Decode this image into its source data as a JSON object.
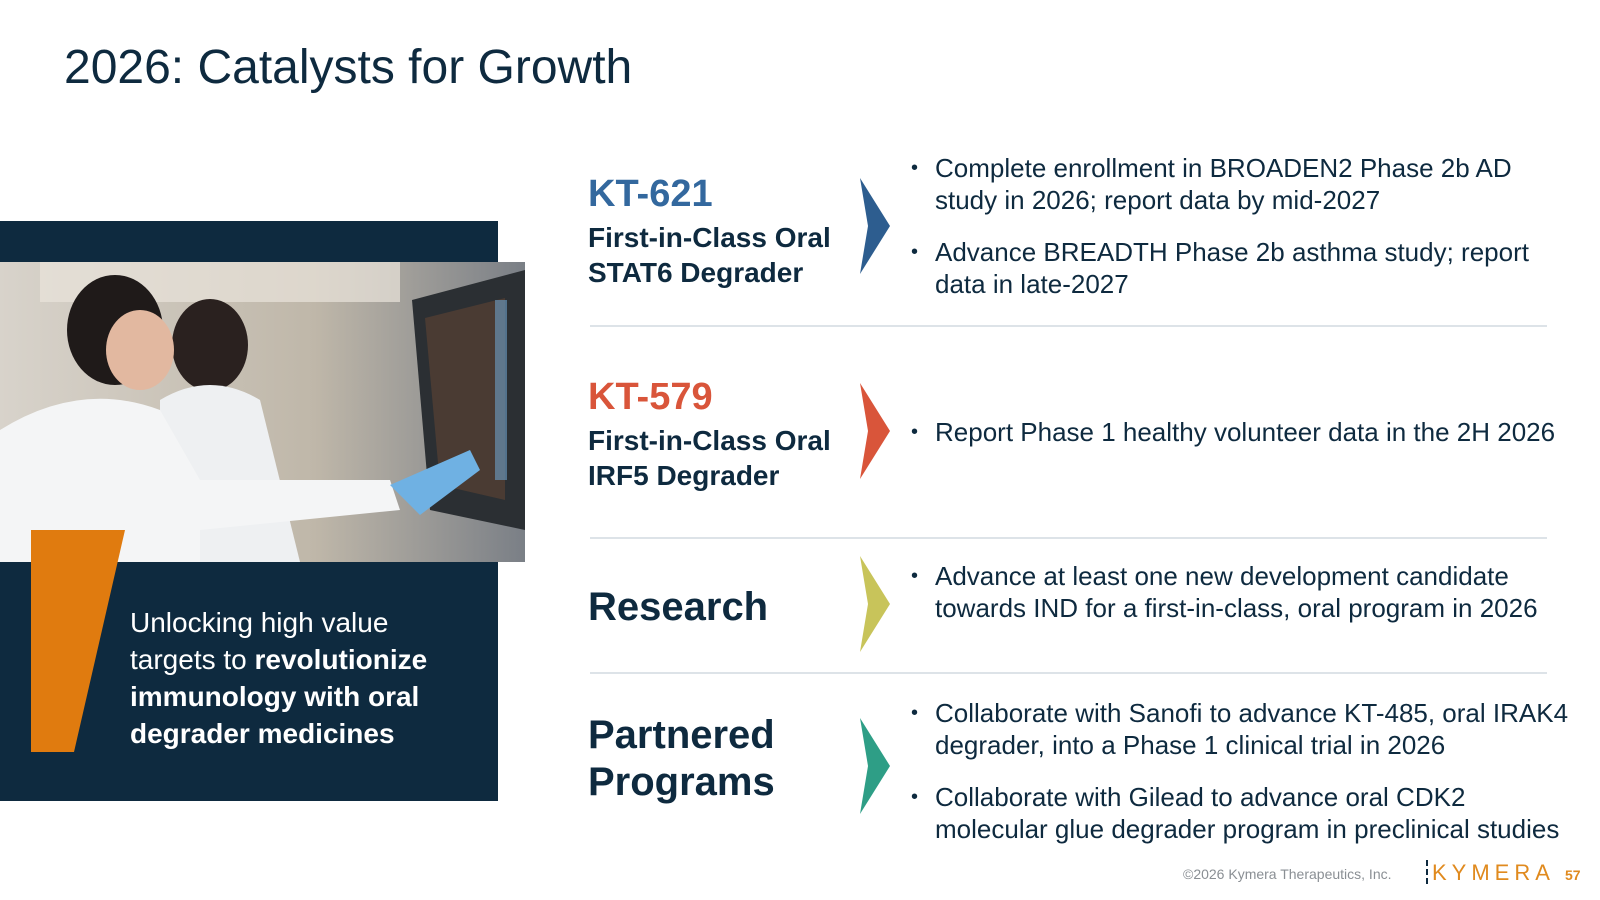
{
  "header": {
    "title": "2026: Catalysts for Growth"
  },
  "sidebar": {
    "caption_regular": "Unlocking high value targets to",
    "caption_bold": "revolutionize immunology with oral degrader medicines"
  },
  "rows": [
    {
      "name": "KT-621",
      "subtitle": "First-in-Class Oral STAT6 Degrader",
      "bullets": [
        "Complete enrollment in BROADEN2 Phase 2b AD study in 2026; report data by mid-2027",
        "Advance BREADTH Phase 2b asthma study; report data in late-2027"
      ]
    },
    {
      "name": "KT-579",
      "subtitle": "First-in-Class Oral IRF5 Degrader",
      "bullets": [
        "Report Phase 1 healthy volunteer data in the 2H 2026"
      ]
    },
    {
      "name": "Research",
      "bullets": [
        "Advance at least one new development candidate towards IND for a first-in-class, oral program in 2026"
      ]
    },
    {
      "name": "Partnered Programs",
      "bullets": [
        "Collaborate with Sanofi to advance KT-485, oral IRAK4 degrader, into a Phase 1 clinical trial in 2026",
        "Collaborate with Gilead to advance oral CDK2 molecular glue degrader program in preclinical studies"
      ]
    }
  ],
  "footer": {
    "copyright": "©2026 Kymera Therapeutics, Inc.",
    "logo": "KYMERA",
    "page": "57"
  }
}
